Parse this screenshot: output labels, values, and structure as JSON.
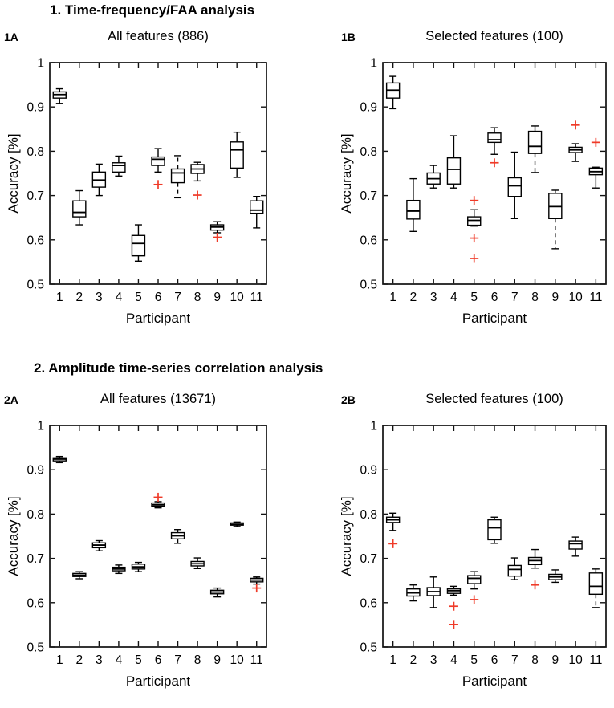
{
  "colors": {
    "background": "#ffffff",
    "axis": "#111111",
    "text": "#000000",
    "box_stroke": "#000000",
    "box_fill": "#ffffff",
    "median": "#000000",
    "outlier": "#ef3a28"
  },
  "sections": [
    {
      "title": "1. Time-frequency/FAA analysis"
    },
    {
      "title": "2. Amplitude time-series correlation analysis"
    }
  ],
  "chart_data": [
    {
      "id": "1A",
      "panel_label": "1A",
      "type": "boxplot",
      "title": "All features (886)",
      "xlabel": "Participant",
      "ylabel": "Accuracy [%]",
      "ylim": [
        0.5,
        1.0
      ],
      "yticks": [
        0.5,
        0.6,
        0.7,
        0.8,
        0.9,
        1
      ],
      "ytick_labels": [
        "0.5",
        "0.6",
        "0.7",
        "0.8",
        "0.9",
        "1"
      ],
      "categories": [
        "1",
        "2",
        "3",
        "4",
        "5",
        "6",
        "7",
        "8",
        "9",
        "10",
        "11"
      ],
      "grid": false,
      "legend": null,
      "outlier_marker": "+",
      "boxes": [
        {
          "whislo": 0.908,
          "q1": 0.92,
          "med": 0.928,
          "q3": 0.934,
          "whishi": 0.941,
          "outliers": []
        },
        {
          "whislo": 0.634,
          "q1": 0.652,
          "med": 0.662,
          "q3": 0.688,
          "whishi": 0.711,
          "outliers": []
        },
        {
          "whislo": 0.7,
          "q1": 0.719,
          "med": 0.735,
          "q3": 0.753,
          "whishi": 0.771,
          "outliers": []
        },
        {
          "whislo": 0.744,
          "q1": 0.753,
          "med": 0.768,
          "q3": 0.774,
          "whishi": 0.789,
          "outliers": []
        },
        {
          "whislo": 0.552,
          "q1": 0.564,
          "med": 0.592,
          "q3": 0.61,
          "whishi": 0.634,
          "outliers": []
        },
        {
          "whislo": 0.753,
          "q1": 0.768,
          "med": 0.782,
          "q3": 0.787,
          "whishi": 0.806,
          "outliers": [
            0.725
          ]
        },
        {
          "whislo": 0.695,
          "q1": 0.729,
          "med": 0.751,
          "q3": 0.76,
          "whishi": 0.79,
          "outliers": [],
          "dashed_lo": true,
          "dashed_hi": true
        },
        {
          "whislo": 0.733,
          "q1": 0.75,
          "med": 0.76,
          "q3": 0.77,
          "whishi": 0.775,
          "outliers": [
            0.701
          ]
        },
        {
          "whislo": 0.616,
          "q1": 0.622,
          "med": 0.629,
          "q3": 0.634,
          "whishi": 0.641,
          "outliers": [
            0.606
          ]
        },
        {
          "whislo": 0.741,
          "q1": 0.762,
          "med": 0.803,
          "q3": 0.821,
          "whishi": 0.843,
          "outliers": []
        },
        {
          "whislo": 0.627,
          "q1": 0.66,
          "med": 0.667,
          "q3": 0.688,
          "whishi": 0.698,
          "outliers": []
        }
      ]
    },
    {
      "id": "1B",
      "panel_label": "1B",
      "type": "boxplot",
      "title": "Selected features (100)",
      "xlabel": "Participant",
      "ylabel": "Accuracy [%]",
      "ylim": [
        0.5,
        1.0
      ],
      "yticks": [
        0.5,
        0.6,
        0.7,
        0.8,
        0.9,
        1
      ],
      "ytick_labels": [
        "0.5",
        "0.6",
        "0.7",
        "0.8",
        "0.9",
        "1"
      ],
      "categories": [
        "1",
        "2",
        "3",
        "4",
        "5",
        "6",
        "7",
        "8",
        "9",
        "10",
        "11"
      ],
      "grid": false,
      "legend": null,
      "outlier_marker": "+",
      "boxes": [
        {
          "whislo": 0.896,
          "q1": 0.92,
          "med": 0.938,
          "q3": 0.954,
          "whishi": 0.969,
          "outliers": []
        },
        {
          "whislo": 0.619,
          "q1": 0.647,
          "med": 0.665,
          "q3": 0.689,
          "whishi": 0.738,
          "outliers": []
        },
        {
          "whislo": 0.717,
          "q1": 0.726,
          "med": 0.738,
          "q3": 0.751,
          "whishi": 0.768,
          "outliers": []
        },
        {
          "whislo": 0.717,
          "q1": 0.726,
          "med": 0.759,
          "q3": 0.785,
          "whishi": 0.835,
          "outliers": []
        },
        {
          "whislo": 0.631,
          "q1": 0.633,
          "med": 0.644,
          "q3": 0.652,
          "whishi": 0.668,
          "outliers": [
            0.689,
            0.604,
            0.558
          ]
        },
        {
          "whislo": 0.793,
          "q1": 0.82,
          "med": 0.826,
          "q3": 0.841,
          "whishi": 0.853,
          "outliers": [
            0.774
          ]
        },
        {
          "whislo": 0.648,
          "q1": 0.698,
          "med": 0.722,
          "q3": 0.74,
          "whishi": 0.798,
          "outliers": []
        },
        {
          "whislo": 0.752,
          "q1": 0.795,
          "med": 0.811,
          "q3": 0.845,
          "whishi": 0.857,
          "outliers": [],
          "dashed_lo": true
        },
        {
          "whislo": 0.58,
          "q1": 0.648,
          "med": 0.675,
          "q3": 0.705,
          "whishi": 0.712,
          "outliers": [],
          "dashed_lo": true
        },
        {
          "whislo": 0.777,
          "q1": 0.797,
          "med": 0.803,
          "q3": 0.809,
          "whishi": 0.817,
          "outliers": [
            0.859
          ]
        },
        {
          "whislo": 0.717,
          "q1": 0.747,
          "med": 0.754,
          "q3": 0.762,
          "whishi": 0.764,
          "outliers": [
            0.82
          ]
        }
      ]
    },
    {
      "id": "2A",
      "panel_label": "2A",
      "type": "boxplot",
      "title": "All features (13671)",
      "xlabel": "Participant",
      "ylabel": "Accuracy [%]",
      "ylim": [
        0.5,
        1.0
      ],
      "yticks": [
        0.5,
        0.6,
        0.7,
        0.8,
        0.9,
        1
      ],
      "ytick_labels": [
        "0.5",
        "0.6",
        "0.7",
        "0.8",
        "0.9",
        "1"
      ],
      "categories": [
        "1",
        "2",
        "3",
        "4",
        "5",
        "6",
        "7",
        "8",
        "9",
        "10",
        "11"
      ],
      "grid": false,
      "legend": null,
      "outlier_marker": "+",
      "boxes": [
        {
          "whislo": 0.916,
          "q1": 0.92,
          "med": 0.924,
          "q3": 0.927,
          "whishi": 0.93,
          "outliers": []
        },
        {
          "whislo": 0.654,
          "q1": 0.659,
          "med": 0.662,
          "q3": 0.666,
          "whishi": 0.67,
          "outliers": []
        },
        {
          "whislo": 0.717,
          "q1": 0.724,
          "med": 0.73,
          "q3": 0.735,
          "whishi": 0.74,
          "outliers": []
        },
        {
          "whislo": 0.666,
          "q1": 0.672,
          "med": 0.676,
          "q3": 0.68,
          "whishi": 0.685,
          "outliers": []
        },
        {
          "whislo": 0.67,
          "q1": 0.676,
          "med": 0.681,
          "q3": 0.687,
          "whishi": 0.691,
          "outliers": []
        },
        {
          "whislo": 0.814,
          "q1": 0.818,
          "med": 0.821,
          "q3": 0.825,
          "whishi": 0.828,
          "outliers": [
            0.838
          ]
        },
        {
          "whislo": 0.734,
          "q1": 0.744,
          "med": 0.751,
          "q3": 0.758,
          "whishi": 0.765,
          "outliers": []
        },
        {
          "whislo": 0.677,
          "q1": 0.683,
          "med": 0.688,
          "q3": 0.693,
          "whishi": 0.701,
          "outliers": []
        },
        {
          "whislo": 0.613,
          "q1": 0.62,
          "med": 0.624,
          "q3": 0.628,
          "whishi": 0.633,
          "outliers": []
        },
        {
          "whislo": 0.772,
          "q1": 0.775,
          "med": 0.777,
          "q3": 0.78,
          "whishi": 0.782,
          "outliers": []
        },
        {
          "whislo": 0.642,
          "q1": 0.647,
          "med": 0.651,
          "q3": 0.655,
          "whishi": 0.658,
          "outliers": [
            0.633
          ]
        }
      ]
    },
    {
      "id": "2B",
      "panel_label": "2B",
      "type": "boxplot",
      "title": "Selected features (100)",
      "xlabel": "Participant",
      "ylabel": "Accuracy [%]",
      "ylim": [
        0.5,
        1.0
      ],
      "yticks": [
        0.5,
        0.6,
        0.7,
        0.8,
        0.9,
        1
      ],
      "ytick_labels": [
        "0.5",
        "0.6",
        "0.7",
        "0.8",
        "0.9",
        "1"
      ],
      "categories": [
        "1",
        "2",
        "3",
        "4",
        "5",
        "6",
        "7",
        "8",
        "9",
        "10",
        "11"
      ],
      "grid": false,
      "legend": null,
      "outlier_marker": "+",
      "boxes": [
        {
          "whislo": 0.763,
          "q1": 0.781,
          "med": 0.787,
          "q3": 0.793,
          "whishi": 0.802,
          "outliers": [
            0.733
          ]
        },
        {
          "whislo": 0.604,
          "q1": 0.615,
          "med": 0.622,
          "q3": 0.631,
          "whishi": 0.64,
          "outliers": []
        },
        {
          "whislo": 0.589,
          "q1": 0.616,
          "med": 0.625,
          "q3": 0.634,
          "whishi": 0.658,
          "outliers": []
        },
        {
          "whislo": 0.617,
          "q1": 0.621,
          "med": 0.627,
          "q3": 0.631,
          "whishi": 0.637,
          "outliers": [
            0.592,
            0.551
          ]
        },
        {
          "whislo": 0.631,
          "q1": 0.643,
          "med": 0.655,
          "q3": 0.661,
          "whishi": 0.67,
          "outliers": [
            0.607
          ]
        },
        {
          "whislo": 0.734,
          "q1": 0.742,
          "med": 0.769,
          "q3": 0.787,
          "whishi": 0.793,
          "outliers": []
        },
        {
          "whislo": 0.652,
          "q1": 0.66,
          "med": 0.675,
          "q3": 0.684,
          "whishi": 0.701,
          "outliers": []
        },
        {
          "whislo": 0.678,
          "q1": 0.686,
          "med": 0.695,
          "q3": 0.702,
          "whishi": 0.72,
          "outliers": [
            0.64
          ]
        },
        {
          "whislo": 0.646,
          "q1": 0.652,
          "med": 0.658,
          "q3": 0.664,
          "whishi": 0.674,
          "outliers": []
        },
        {
          "whislo": 0.705,
          "q1": 0.721,
          "med": 0.733,
          "q3": 0.739,
          "whishi": 0.748,
          "outliers": []
        },
        {
          "whislo": 0.589,
          "q1": 0.619,
          "med": 0.637,
          "q3": 0.667,
          "whishi": 0.676,
          "outliers": [],
          "dashed_lo": true
        }
      ]
    }
  ]
}
